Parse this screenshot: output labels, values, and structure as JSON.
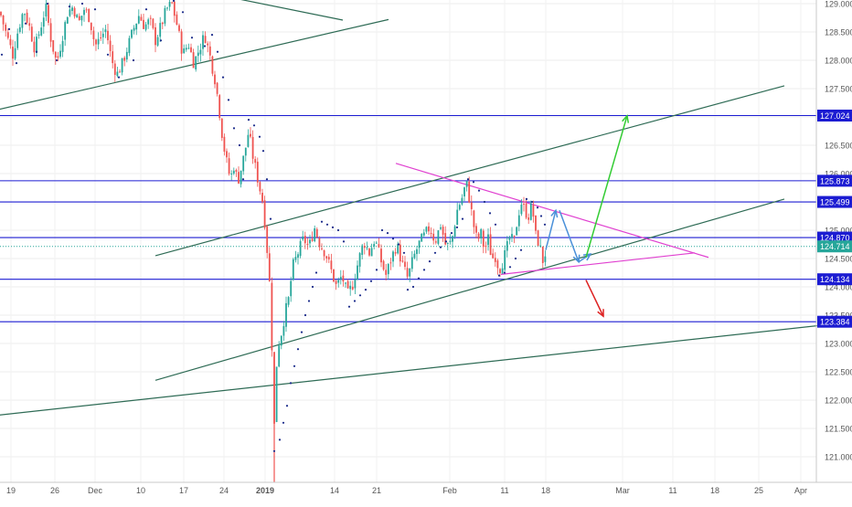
{
  "colors": {
    "bull": "#26a69a",
    "bear": "#ef5350",
    "support_resistance": "#1c1cd2",
    "channel": "#2e6b55",
    "triangle": "#e040d0",
    "dots": "#1a2a8a",
    "arrow_blue": "#4a90d9",
    "arrow_green": "#33cc33",
    "arrow_red": "#dd2222",
    "current_price": "#26a69a",
    "axis_text": "#555555"
  },
  "chart_data": {
    "type": "candlestick",
    "title": "",
    "xlabel": "",
    "ylabel": "",
    "ylim": [
      120.55,
      129.1
    ],
    "x_tick_labels": [
      "19",
      "26",
      "Dec",
      "10",
      "17",
      "24",
      "2019",
      "14",
      "21",
      "Feb",
      "11",
      "18",
      "Mar",
      "11",
      "18",
      "25",
      "Apr"
    ],
    "y_tick_labels": [
      "129.000",
      "128.500",
      "128.000",
      "127.500",
      "127.000",
      "126.500",
      "126.000",
      "125.500",
      "125.000",
      "124.500",
      "124.000",
      "123.500",
      "123.000",
      "122.500",
      "122.000",
      "121.500",
      "121.000"
    ],
    "levels": [
      {
        "label": "127.024",
        "value": 127.024
      },
      {
        "label": "125.873",
        "value": 125.873
      },
      {
        "label": "125.499",
        "value": 125.499
      },
      {
        "label": "124.870",
        "value": 124.87
      },
      {
        "label": "124.134",
        "value": 124.134
      },
      {
        "label": "123.384",
        "value": 123.384
      }
    ],
    "current_price": {
      "label": "124.714",
      "value": 124.714
    },
    "candle_path": [
      [
        0,
        128.85
      ],
      [
        8,
        128.4
      ],
      [
        14,
        128.1
      ],
      [
        20,
        128.55
      ],
      [
        26,
        128.9
      ],
      [
        32,
        128.6
      ],
      [
        38,
        128.2
      ],
      [
        44,
        128.55
      ],
      [
        50,
        128.95
      ],
      [
        56,
        128.35
      ],
      [
        62,
        127.95
      ],
      [
        68,
        128.4
      ],
      [
        74,
        128.85
      ],
      [
        80,
        128.95
      ],
      [
        86,
        128.65
      ],
      [
        92,
        128.9
      ],
      [
        98,
        128.75
      ],
      [
        104,
        128.25
      ],
      [
        110,
        128.4
      ],
      [
        116,
        128.55
      ],
      [
        122,
        128.0
      ],
      [
        128,
        127.75
      ],
      [
        134,
        127.95
      ],
      [
        140,
        128.25
      ],
      [
        146,
        128.55
      ],
      [
        152,
        128.8
      ],
      [
        158,
        128.6
      ],
      [
        164,
        128.7
      ],
      [
        170,
        128.35
      ],
      [
        176,
        128.6
      ],
      [
        182,
        128.9
      ],
      [
        188,
        129.0
      ],
      [
        194,
        128.6
      ],
      [
        200,
        128.1
      ],
      [
        206,
        128.3
      ],
      [
        212,
        127.95
      ],
      [
        218,
        128.2
      ],
      [
        224,
        128.45
      ],
      [
        230,
        128.05
      ],
      [
        236,
        127.6
      ],
      [
        240,
        127.1
      ],
      [
        244,
        126.55
      ],
      [
        248,
        126.2
      ],
      [
        252,
        125.9
      ],
      [
        256,
        126.15
      ],
      [
        260,
        125.85
      ],
      [
        264,
        126.1
      ],
      [
        268,
        126.4
      ],
      [
        272,
        126.75
      ],
      [
        276,
        126.35
      ],
      [
        280,
        126.05
      ],
      [
        284,
        125.75
      ],
      [
        288,
        125.45
      ],
      [
        292,
        124.7
      ],
      [
        296,
        123.8
      ],
      [
        298,
        122.6
      ],
      [
        300,
        121.55
      ],
      [
        302,
        122.5
      ],
      [
        304,
        122.95
      ],
      [
        308,
        123.2
      ],
      [
        312,
        123.55
      ],
      [
        316,
        123.8
      ],
      [
        320,
        124.35
      ],
      [
        326,
        124.6
      ],
      [
        332,
        124.85
      ],
      [
        338,
        124.7
      ],
      [
        344,
        125.05
      ],
      [
        350,
        124.75
      ],
      [
        356,
        124.6
      ],
      [
        362,
        124.3
      ],
      [
        368,
        124.0
      ],
      [
        374,
        124.2
      ],
      [
        380,
        123.85
      ],
      [
        386,
        124.05
      ],
      [
        392,
        124.45
      ],
      [
        398,
        124.8
      ],
      [
        404,
        124.6
      ],
      [
        410,
        124.85
      ],
      [
        416,
        124.5
      ],
      [
        422,
        124.2
      ],
      [
        428,
        124.5
      ],
      [
        434,
        124.75
      ],
      [
        440,
        124.4
      ],
      [
        446,
        124.15
      ],
      [
        452,
        124.5
      ],
      [
        458,
        124.75
      ],
      [
        464,
        124.9
      ],
      [
        470,
        125.05
      ],
      [
        476,
        124.8
      ],
      [
        482,
        125.1
      ],
      [
        488,
        124.7
      ],
      [
        494,
        124.8
      ],
      [
        500,
        125.35
      ],
      [
        506,
        125.6
      ],
      [
        510,
        125.85
      ],
      [
        514,
        125.5
      ],
      [
        518,
        125.1
      ],
      [
        522,
        124.8
      ],
      [
        526,
        124.95
      ],
      [
        530,
        124.65
      ],
      [
        534,
        124.85
      ],
      [
        538,
        124.5
      ],
      [
        542,
        124.55
      ],
      [
        546,
        124.3
      ],
      [
        550,
        124.45
      ],
      [
        554,
        124.65
      ],
      [
        558,
        124.9
      ],
      [
        562,
        124.75
      ],
      [
        566,
        125.2
      ],
      [
        570,
        125.5
      ],
      [
        574,
        125.35
      ],
      [
        578,
        125.25
      ],
      [
        582,
        125.45
      ],
      [
        586,
        124.9
      ],
      [
        590,
        124.75
      ],
      [
        594,
        124.45
      ],
      [
        598,
        124.68
      ]
    ],
    "sar_dots": [
      [
        2,
        128.1
      ],
      [
        10,
        128.55
      ],
      [
        18,
        127.95
      ],
      [
        28,
        128.65
      ],
      [
        40,
        128.15
      ],
      [
        52,
        129.0
      ],
      [
        62,
        128.0
      ],
      [
        76,
        128.95
      ],
      [
        90,
        129.0
      ],
      [
        104,
        128.9
      ],
      [
        118,
        128.1
      ],
      [
        130,
        127.7
      ],
      [
        146,
        128.0
      ],
      [
        160,
        128.9
      ],
      [
        176,
        128.35
      ],
      [
        190,
        129.05
      ],
      [
        200,
        128.85
      ],
      [
        210,
        128.4
      ],
      [
        224,
        128.25
      ],
      [
        232,
        128.45
      ],
      [
        238,
        128.15
      ],
      [
        244,
        127.7
      ],
      [
        250,
        127.3
      ],
      [
        256,
        126.8
      ],
      [
        262,
        126.5
      ],
      [
        266,
        125.9
      ],
      [
        272,
        126.95
      ],
      [
        278,
        126.85
      ],
      [
        284,
        126.65
      ],
      [
        288,
        126.4
      ],
      [
        292,
        125.9
      ],
      [
        296,
        125.2
      ],
      [
        300,
        121.1
      ],
      [
        306,
        121.3
      ],
      [
        310,
        121.6
      ],
      [
        314,
        121.9
      ],
      [
        318,
        122.3
      ],
      [
        322,
        122.6
      ],
      [
        326,
        122.9
      ],
      [
        330,
        123.2
      ],
      [
        334,
        123.5
      ],
      [
        338,
        123.75
      ],
      [
        342,
        124.0
      ],
      [
        346,
        124.25
      ],
      [
        352,
        125.15
      ],
      [
        358,
        125.1
      ],
      [
        364,
        125.05
      ],
      [
        370,
        125.0
      ],
      [
        376,
        124.8
      ],
      [
        382,
        123.65
      ],
      [
        388,
        123.75
      ],
      [
        394,
        123.85
      ],
      [
        400,
        123.95
      ],
      [
        406,
        124.1
      ],
      [
        412,
        124.3
      ],
      [
        418,
        125.0
      ],
      [
        424,
        124.95
      ],
      [
        430,
        124.85
      ],
      [
        436,
        124.75
      ],
      [
        442,
        124.6
      ],
      [
        446,
        123.95
      ],
      [
        452,
        124.0
      ],
      [
        458,
        124.15
      ],
      [
        464,
        124.3
      ],
      [
        470,
        124.45
      ],
      [
        476,
        124.6
      ],
      [
        482,
        124.7
      ],
      [
        488,
        124.8
      ],
      [
        494,
        124.95
      ],
      [
        500,
        125.05
      ],
      [
        506,
        125.2
      ],
      [
        512,
        125.9
      ],
      [
        518,
        125.85
      ],
      [
        524,
        125.7
      ],
      [
        530,
        125.5
      ],
      [
        536,
        125.3
      ],
      [
        542,
        125.1
      ],
      [
        546,
        124.2
      ],
      [
        552,
        124.25
      ],
      [
        558,
        124.35
      ],
      [
        564,
        124.5
      ],
      [
        570,
        124.65
      ],
      [
        576,
        125.55
      ],
      [
        582,
        125.5
      ],
      [
        588,
        125.4
      ],
      [
        592,
        125.25
      ],
      [
        596,
        125.1
      ]
    ],
    "trend_lines": [
      {
        "name": "top-trend",
        "points": [
          [
            -10,
            127.1
          ],
          [
            425,
            128.72
          ]
        ]
      },
      {
        "name": "top-short-line",
        "points": [
          [
            240,
            129.15
          ],
          [
            375,
            128.71
          ]
        ]
      },
      {
        "name": "channel-upper",
        "points": [
          [
            170,
            124.55
          ],
          [
            858,
            127.55
          ]
        ]
      },
      {
        "name": "channel-lower",
        "points": [
          [
            170,
            122.35
          ],
          [
            858,
            125.55
          ]
        ]
      },
      {
        "name": "long-support",
        "points": [
          [
            -10,
            121.72
          ],
          [
            932,
            123.38
          ]
        ]
      },
      {
        "name": "triangle-upper",
        "points": [
          [
            433,
            126.18
          ],
          [
            775,
            124.52
          ]
        ]
      },
      {
        "name": "triangle-lower",
        "points": [
          [
            548,
            124.22
          ],
          [
            760,
            124.6
          ]
        ]
      }
    ],
    "arrows": [
      {
        "name": "projection-up-1",
        "color": "arrow_blue",
        "points": [
          [
            597,
            124.65
          ],
          [
            608,
            125.35
          ]
        ]
      },
      {
        "name": "projection-down",
        "color": "arrow_blue",
        "points": [
          [
            612,
            125.35
          ],
          [
            633,
            124.44
          ]
        ]
      },
      {
        "name": "projection-up-2",
        "color": "arrow_blue",
        "points": [
          [
            633,
            124.44
          ],
          [
            646,
            124.58
          ]
        ]
      },
      {
        "name": "breakout-target",
        "color": "arrow_green",
        "points": [
          [
            641,
            124.52
          ],
          [
            686,
            127.02
          ]
        ]
      },
      {
        "name": "breakdown-target",
        "color": "arrow_red",
        "points": [
          [
            641,
            124.12
          ],
          [
            660,
            123.48
          ]
        ]
      }
    ]
  }
}
